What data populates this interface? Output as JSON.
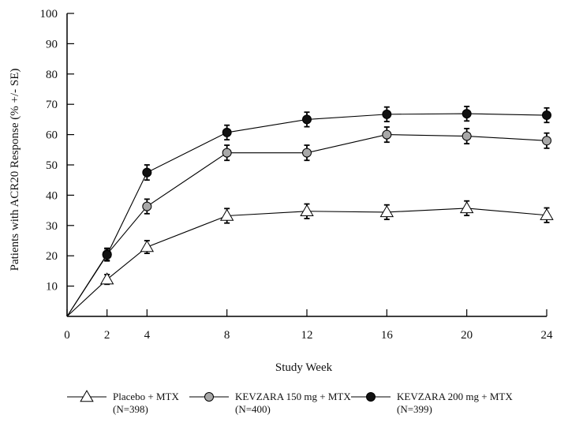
{
  "chart_data": {
    "type": "line",
    "title": "",
    "xlabel": "Study Week",
    "ylabel": "Patients with ACR20 Response (% +/- SE)",
    "xlim": [
      0,
      24
    ],
    "ylim": [
      0,
      100
    ],
    "x_ticks": [
      0,
      2,
      4,
      8,
      12,
      16,
      20,
      24
    ],
    "y_ticks": [
      10,
      20,
      30,
      40,
      50,
      60,
      70,
      80,
      90,
      100
    ],
    "grid": false,
    "legend_position": "bottom",
    "series": [
      {
        "name_line1": "Placebo + MTX",
        "name_line2": "(N=398)",
        "marker": "open-triangle",
        "color": "#000000",
        "fill": "#ffffff",
        "x": [
          0,
          2,
          4,
          8,
          12,
          16,
          20,
          24
        ],
        "y": [
          0,
          12.2,
          22.9,
          33.2,
          34.7,
          34.4,
          35.7,
          33.4
        ],
        "se": [
          0,
          1.6,
          2.1,
          2.4,
          2.4,
          2.4,
          2.4,
          2.4
        ]
      },
      {
        "name_line1": "KEVZARA 150 mg + MTX",
        "name_line2": "(N=400)",
        "marker": "gray-circle",
        "color": "#000000",
        "fill": "#a8a8a8",
        "x": [
          0,
          2,
          4,
          8,
          12,
          16,
          20,
          24
        ],
        "y": [
          0,
          20.5,
          36.3,
          54.0,
          54.0,
          60.0,
          59.5,
          58.0
        ],
        "se": [
          0,
          2.0,
          2.4,
          2.5,
          2.5,
          2.5,
          2.5,
          2.5
        ]
      },
      {
        "name_line1": "KEVZARA 200 mg + MTX",
        "name_line2": "(N=399)",
        "marker": "black-circle",
        "color": "#000000",
        "fill": "#111111",
        "x": [
          0,
          2,
          4,
          8,
          12,
          16,
          20,
          24
        ],
        "y": [
          0,
          20.3,
          47.5,
          60.7,
          65.0,
          66.7,
          66.9,
          66.4
        ],
        "se": [
          0,
          2.0,
          2.5,
          2.4,
          2.4,
          2.4,
          2.4,
          2.4
        ]
      }
    ]
  }
}
